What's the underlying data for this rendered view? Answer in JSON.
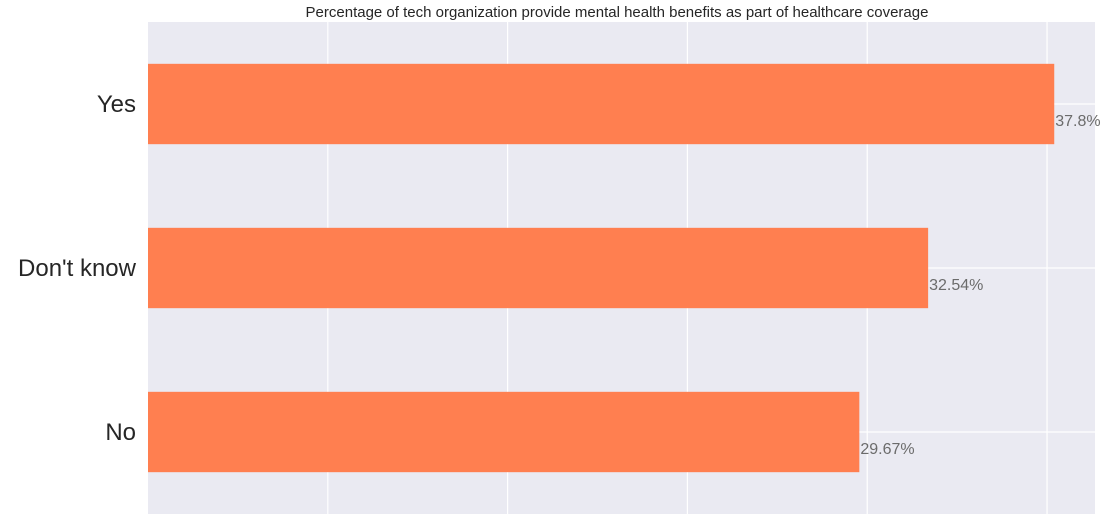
{
  "chart_data": {
    "type": "bar",
    "orientation": "horizontal",
    "title": "Percentage of tech organization provide mental health benefits as part of healthcare coverage",
    "categories": [
      "Yes",
      "Don't know",
      "No"
    ],
    "values": [
      37.8,
      32.54,
      29.67
    ],
    "value_labels": [
      "37.8%",
      "32.54%",
      "29.67%"
    ],
    "xlabel": "",
    "ylabel": "",
    "xlim": [
      0,
      39.5
    ],
    "grid": true,
    "legend": "none",
    "colors": {
      "bar": "#ff7f50",
      "background": "#eaeaf2",
      "grid": "#ffffff"
    }
  }
}
